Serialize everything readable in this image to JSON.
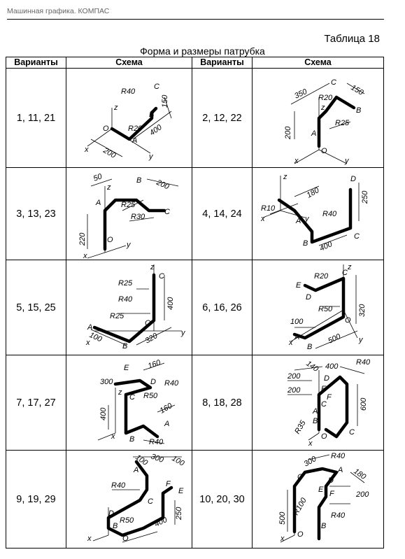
{
  "header": {
    "text": "Машинная графика. КОМПАС",
    "table_label": "Таблица 18",
    "table_title": "Форма и размеры патрубка"
  },
  "columns": [
    "Варианты",
    "Схема",
    "Варианты",
    "Схема"
  ],
  "rows": [
    {
      "left": {
        "variants": "1, 11, 21",
        "labels": [
          "R40",
          "C",
          "150",
          "B",
          "O",
          "R20",
          "400",
          "200",
          "A",
          "z",
          "x",
          "y"
        ]
      },
      "right": {
        "variants": "2, 12, 22",
        "labels": [
          "350",
          "C",
          "150",
          "R20",
          "B",
          "z",
          "R25",
          "200",
          "A",
          "O",
          "x",
          "y"
        ]
      }
    },
    {
      "left": {
        "variants": "3, 13, 23",
        "labels": [
          "50",
          "B",
          "200",
          "z",
          "A",
          "R25",
          "R30",
          "C",
          "220",
          "O",
          "x",
          "y"
        ]
      },
      "right": {
        "variants": "4, 14, 24",
        "labels": [
          "z",
          "D",
          "180",
          "250",
          "R10",
          "A",
          "R40",
          "C",
          "B",
          "400",
          "x",
          "y"
        ]
      }
    },
    {
      "left": {
        "variants": "5, 15, 25",
        "labels": [
          "z",
          "C",
          "R25",
          "R40",
          "400",
          "R25",
          "O",
          "A",
          "100",
          "B",
          "320",
          "x",
          "y"
        ]
      },
      "right": {
        "variants": "6, 16, 26",
        "labels": [
          "R20",
          "C",
          "z",
          "E",
          "D",
          "R50",
          "320",
          "100",
          "O",
          "A",
          "B",
          "500",
          "x",
          "y"
        ]
      }
    },
    {
      "left": {
        "variants": "7, 17, 27",
        "labels": [
          "E",
          "160",
          "300",
          "D",
          "R40",
          "z",
          "C",
          "R50",
          "160",
          "400",
          "A",
          "x",
          "B",
          "R40"
        ]
      },
      "right": {
        "variants": "8, 18, 28",
        "labels": [
          "140",
          "400",
          "R40",
          "200",
          "D",
          "200",
          "E",
          "F",
          "600",
          "C",
          "A",
          "B",
          "R35",
          "O",
          "C",
          "x"
        ]
      }
    },
    {
      "left": {
        "variants": "9, 19, 29",
        "labels": [
          "100",
          "300",
          "100",
          "A",
          "F",
          "E",
          "R40",
          "C",
          "D",
          "250",
          "R50",
          "B",
          "400",
          "O",
          "x"
        ]
      },
      "right": {
        "variants": "10, 20, 30",
        "labels": [
          "R40",
          "300",
          "C",
          "A",
          "180",
          "D",
          "E",
          "F",
          "200",
          "500",
          "R100",
          "R40",
          "B",
          "O",
          "x"
        ]
      }
    }
  ]
}
